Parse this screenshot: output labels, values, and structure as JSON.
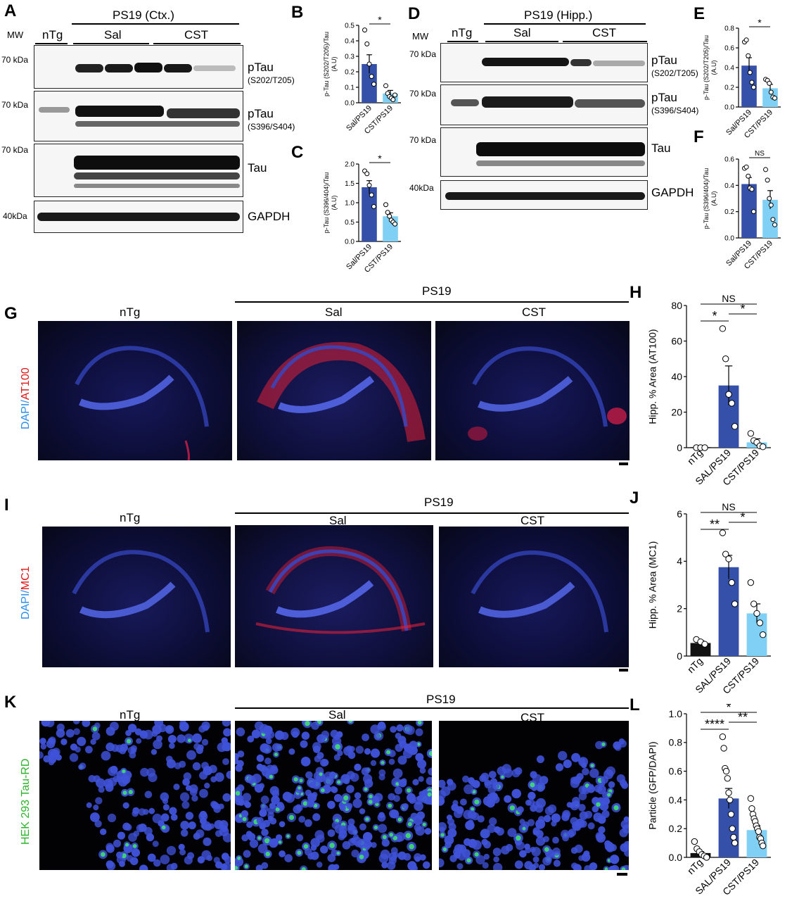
{
  "panels": {
    "A": {
      "label": "A",
      "header": "PS19 (Ctx.)",
      "mw": "MW",
      "groups": [
        "nTg",
        "Sal",
        "CST"
      ],
      "markers": [
        "70 kDa",
        "70 kDa",
        "70 kDa",
        "40kDa"
      ],
      "rows": [
        {
          "name": "pTau",
          "sub": "(S202/T205)"
        },
        {
          "name": "pTau",
          "sub": "(S396/S404)"
        },
        {
          "name": "Tau",
          "sub": ""
        },
        {
          "name": "GAPDH",
          "sub": ""
        }
      ]
    },
    "D": {
      "label": "D",
      "header": "PS19 (Hipp.)",
      "mw": "MW",
      "groups": [
        "nTg",
        "Sal",
        "CST"
      ],
      "markers": [
        "70 kDa",
        "70 kDa",
        "70 kDa",
        "40kDa"
      ],
      "rows": [
        {
          "name": "pTau",
          "sub": "(S202/T205)"
        },
        {
          "name": "pTau",
          "sub": "(S396/S404)"
        },
        {
          "name": "Tau",
          "sub": ""
        },
        {
          "name": "GAPDH",
          "sub": ""
        }
      ]
    },
    "G": {
      "label": "G",
      "header": "PS19",
      "cols": [
        "nTg",
        "Sal",
        "CST"
      ],
      "stain_a": "DAPI/",
      "stain_b": "AT100"
    },
    "I": {
      "label": "I",
      "header": "PS19",
      "cols": [
        "nTg",
        "Sal",
        "CST"
      ],
      "stain_a": "DAPI/",
      "stain_b": "MC1"
    },
    "K": {
      "label": "K",
      "header": "PS19",
      "cols": [
        "nTg",
        "Sal",
        "CST"
      ],
      "stain": "HEK 293 Tau-RD"
    }
  },
  "chart_data": [
    {
      "panel": "B",
      "type": "bar",
      "title": "",
      "ylabel": "p-Tau (S202/T205)/Tau",
      "yunit": "(A.U)",
      "categories": [
        "Sal/PS19",
        "CST/PS19"
      ],
      "values": [
        0.25,
        0.06
      ],
      "errors": [
        0.06,
        0.02
      ],
      "ylim": [
        0,
        0.5
      ],
      "yticks": [
        "0.0",
        "0.1",
        "0.2",
        "0.3",
        "0.4",
        "0.5"
      ],
      "points": [
        [
          0.47,
          0.38,
          0.25,
          0.17,
          0.12
        ],
        [
          0.11,
          0.06,
          0.04,
          0.03,
          0.02,
          0.05
        ]
      ],
      "significance": [
        {
          "from": 0,
          "to": 1,
          "label": "*"
        }
      ]
    },
    {
      "panel": "C",
      "type": "bar",
      "title": "",
      "ylabel": "p-Tau (S396/404)/Tau",
      "yunit": "(A.U)",
      "categories": [
        "Sal/PS19",
        "CST/PS19"
      ],
      "values": [
        1.4,
        0.65
      ],
      "errors": [
        0.17,
        0.09
      ],
      "ylim": [
        0,
        2.0
      ],
      "yticks": [
        "0.0",
        "0.5",
        "1.0",
        "1.5",
        "2.0"
      ],
      "points": [
        [
          1.82,
          1.75,
          1.45,
          1.2,
          0.9
        ],
        [
          0.95,
          0.75,
          0.65,
          0.55,
          0.5,
          0.45
        ]
      ],
      "significance": [
        {
          "from": 0,
          "to": 1,
          "label": "*"
        }
      ]
    },
    {
      "panel": "E",
      "type": "bar",
      "title": "",
      "ylabel": "p-Tau (S202/T205)/Tau",
      "yunit": "(A.U)",
      "categories": [
        "Sal/PS19",
        "CST/PS19"
      ],
      "values": [
        0.42,
        0.19
      ],
      "errors": [
        0.08,
        0.04
      ],
      "ylim": [
        0,
        0.8
      ],
      "yticks": [
        "0.0",
        "0.2",
        "0.4",
        "0.6",
        "0.8"
      ],
      "points": [
        [
          0.66,
          0.68,
          0.52,
          0.35,
          0.25,
          0.2
        ],
        [
          0.28,
          0.27,
          0.24,
          0.15,
          0.1,
          0.09
        ]
      ],
      "significance": [
        {
          "from": 0,
          "to": 1,
          "label": "*"
        }
      ]
    },
    {
      "panel": "F",
      "type": "bar",
      "title": "",
      "ylabel": "p-Tau (S396/404)/Tau",
      "yunit": "(A.U)",
      "categories": [
        "Sal/PS19",
        "CST/PS19"
      ],
      "values": [
        0.41,
        0.29
      ],
      "errors": [
        0.05,
        0.07
      ],
      "ylim": [
        0,
        0.6
      ],
      "yticks": [
        "0.0",
        "0.2",
        "0.4",
        "0.6"
      ],
      "points": [
        [
          0.53,
          0.54,
          0.47,
          0.38,
          0.37,
          0.2
        ],
        [
          0.52,
          0.44,
          0.3,
          0.25,
          0.14,
          0.1
        ]
      ],
      "significance": [
        {
          "from": 0,
          "to": 1,
          "label": "NS"
        }
      ]
    },
    {
      "panel": "H",
      "type": "bar",
      "title": "",
      "ylabel": "Hipp. % Area (AT100)",
      "yunit": "",
      "categories": [
        "nTg",
        "SAL/PS19",
        "CST/PS19"
      ],
      "values": [
        0.3,
        35,
        3
      ],
      "errors": [
        0.2,
        11,
        2
      ],
      "ylim": [
        0,
        80
      ],
      "yticks": [
        "0",
        "20",
        "40",
        "60",
        "80"
      ],
      "points": [
        [
          0,
          0,
          0
        ],
        [
          67,
          50,
          30,
          25,
          12
        ],
        [
          8,
          4,
          3,
          1,
          0.5
        ]
      ],
      "significance": [
        {
          "from": 0,
          "to": 1,
          "label": "*"
        },
        {
          "from": 1,
          "to": 2,
          "label": "*"
        },
        {
          "from": 0,
          "to": 2,
          "label": "NS"
        }
      ]
    },
    {
      "panel": "J",
      "type": "bar",
      "title": "",
      "ylabel": "Hipp. % Area (MC1)",
      "yunit": "",
      "categories": [
        "nTg",
        "SAL/PS19",
        "CST/PS19"
      ],
      "values": [
        0.55,
        3.75,
        1.8
      ],
      "errors": [
        0.1,
        0.5,
        0.4
      ],
      "ylim": [
        0,
        6
      ],
      "yticks": [
        "0",
        "2",
        "4",
        "6"
      ],
      "points": [
        [
          0.7,
          0.6,
          0.5
        ],
        [
          5.2,
          4.3,
          4.1,
          3.1,
          2.2
        ],
        [
          3.1,
          2.2,
          1.8,
          1.4,
          0.9
        ]
      ],
      "significance": [
        {
          "from": 0,
          "to": 1,
          "label": "**"
        },
        {
          "from": 1,
          "to": 2,
          "label": "*"
        },
        {
          "from": 0,
          "to": 2,
          "label": "NS"
        }
      ]
    },
    {
      "panel": "L",
      "type": "bar",
      "title": "",
      "ylabel": "Particle (GFP/DAPI)",
      "yunit": "",
      "categories": [
        "nTg",
        "SAL/PS19",
        "CST/PS19"
      ],
      "values": [
        0.03,
        0.41,
        0.19
      ],
      "errors": [
        0.01,
        0.07,
        0.03
      ],
      "ylim": [
        0,
        1.0
      ],
      "yticks": [
        "0.0",
        "0.2",
        "0.4",
        "0.6",
        "0.8",
        "1.0"
      ],
      "points": [
        [
          0.11,
          0.06,
          0.04,
          0.02,
          0.01,
          0.0
        ],
        [
          0.84,
          0.76,
          0.62,
          0.6,
          0.55,
          0.45,
          0.4,
          0.3,
          0.2,
          0.14,
          0.1
        ],
        [
          0.41,
          0.34,
          0.3,
          0.27,
          0.25,
          0.22,
          0.2,
          0.18,
          0.14,
          0.13,
          0.1,
          0.08
        ]
      ],
      "significance": [
        {
          "from": 0,
          "to": 1,
          "label": "****"
        },
        {
          "from": 1,
          "to": 2,
          "label": "**"
        },
        {
          "from": 0,
          "to": 2,
          "label": "*"
        }
      ]
    }
  ]
}
